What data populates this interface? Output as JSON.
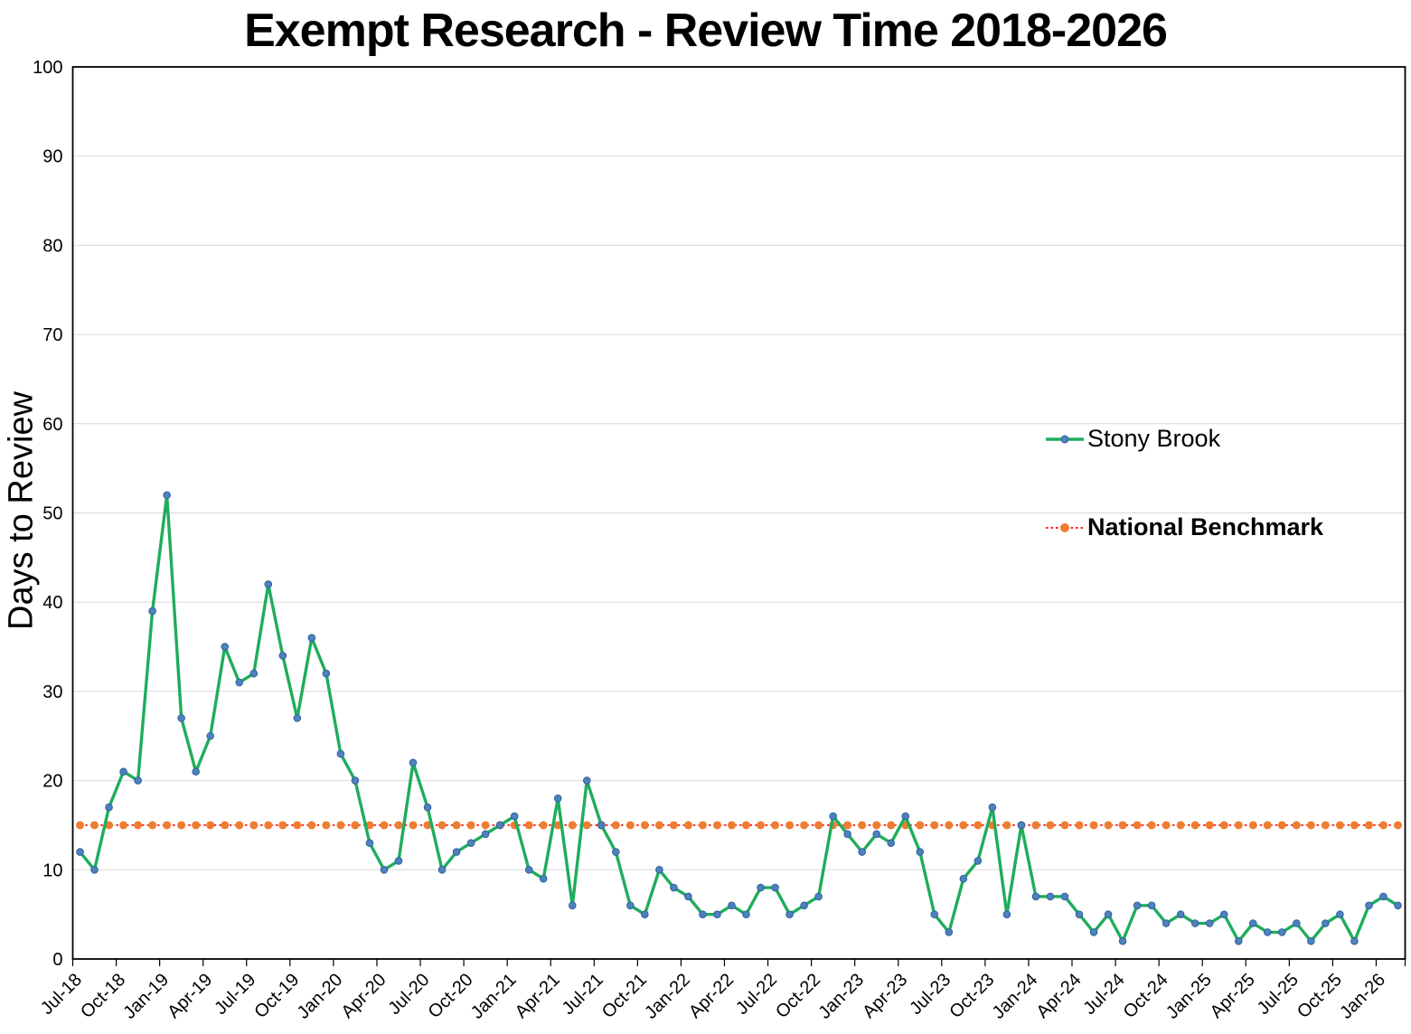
{
  "title": "Exempt Research - Review Time 2018-2026",
  "legend": {
    "stony_brook_label": "Stony Brook",
    "national_benchmark_label": "National Benchmark"
  },
  "colors": {
    "stony_brook_line": "#1FAD5C",
    "stony_brook_marker": "#4E81BD",
    "stony_brook_marker_border": "#2F639C",
    "benchmark_line": "#FF0000",
    "benchmark_marker": "#ED7D31",
    "gridline": "#D9D9D9",
    "axis_border": "#000000",
    "text": "#000000"
  },
  "chart_data": {
    "type": "line",
    "title": "Exempt Research - Review Time 2018-2026",
    "xlabel": "",
    "ylabel": "Days to Review",
    "ylim": [
      0,
      100
    ],
    "ytick_interval": 10,
    "grid": "horizontal",
    "legend_position": "inside-right",
    "x": [
      "Jul-18",
      "Aug-18",
      "Sep-18",
      "Oct-18",
      "Nov-18",
      "Dec-18",
      "Jan-19",
      "Feb-19",
      "Mar-19",
      "Apr-19",
      "May-19",
      "Jun-19",
      "Jul-19",
      "Aug-19",
      "Sep-19",
      "Oct-19",
      "Nov-19",
      "Dec-19",
      "Jan-20",
      "Feb-20",
      "Mar-20",
      "Apr-20",
      "May-20",
      "Jun-20",
      "Jul-20",
      "Aug-20",
      "Sep-20",
      "Oct-20",
      "Nov-20",
      "Dec-20",
      "Jan-21",
      "Feb-21",
      "Mar-21",
      "Apr-21",
      "May-21",
      "Jun-21",
      "Jul-21",
      "Aug-21",
      "Sep-21",
      "Oct-21",
      "Nov-21",
      "Dec-21",
      "Jan-22",
      "Feb-22",
      "Mar-22",
      "Apr-22",
      "May-22",
      "Jun-22",
      "Jul-22",
      "Aug-22",
      "Sep-22",
      "Oct-22",
      "Nov-22",
      "Dec-22",
      "Jan-23",
      "Feb-23",
      "Mar-23",
      "Apr-23",
      "May-23",
      "Jun-23",
      "Jul-23",
      "Aug-23",
      "Sep-23",
      "Oct-23",
      "Nov-23",
      "Dec-23",
      "Jan-24",
      "Feb-24",
      "Mar-24",
      "Apr-24",
      "May-24",
      "Jun-24",
      "Jul-24",
      "Aug-24",
      "Sep-24",
      "Oct-24",
      "Nov-24",
      "Dec-24",
      "Jan-25",
      "Feb-25",
      "Mar-25",
      "Apr-25",
      "May-25",
      "Jun-25",
      "Jul-25",
      "Aug-25",
      "Sep-25",
      "Oct-25",
      "Nov-25",
      "Dec-25",
      "Jan-26",
      "Feb-26"
    ],
    "x_tick_labels": [
      "Jul-18",
      "Oct-18",
      "Jan-19",
      "Apr-19",
      "Jul-19",
      "Oct-19",
      "Jan-20",
      "Apr-20",
      "Jul-20",
      "Oct-20",
      "Jan-21",
      "Apr-21",
      "Jul-21",
      "Oct-21",
      "Jan-22",
      "Apr-22",
      "Jul-22",
      "Oct-22",
      "Jan-23",
      "Apr-23",
      "Jul-23",
      "Oct-23",
      "Jan-24",
      "Apr-24",
      "Jul-24",
      "Oct-24",
      "Jan-25",
      "Apr-25",
      "Jul-25",
      "Oct-25",
      "Jan-26"
    ],
    "x_tick_every": 3,
    "series": [
      {
        "name": "Stony Brook",
        "style": "solid",
        "values": [
          12,
          10,
          17,
          21,
          20,
          39,
          52,
          27,
          21,
          25,
          35,
          31,
          32,
          42,
          34,
          27,
          36,
          32,
          23,
          20,
          13,
          10,
          11,
          22,
          17,
          10,
          12,
          13,
          14,
          15,
          16,
          10,
          9,
          18,
          6,
          20,
          15,
          12,
          6,
          5,
          10,
          8,
          7,
          5,
          5,
          6,
          5,
          8,
          8,
          5,
          6,
          7,
          16,
          14,
          12,
          14,
          13,
          16,
          12,
          5,
          3,
          9,
          11,
          17,
          5,
          15,
          7,
          7,
          7,
          5,
          3,
          5,
          2,
          6,
          6,
          4,
          5,
          4,
          4,
          5,
          2,
          4,
          3,
          3,
          4,
          2,
          4,
          5,
          2,
          6,
          7,
          6
        ]
      },
      {
        "name": "National Benchmark",
        "style": "dotted",
        "constant_value": 15
      }
    ]
  }
}
